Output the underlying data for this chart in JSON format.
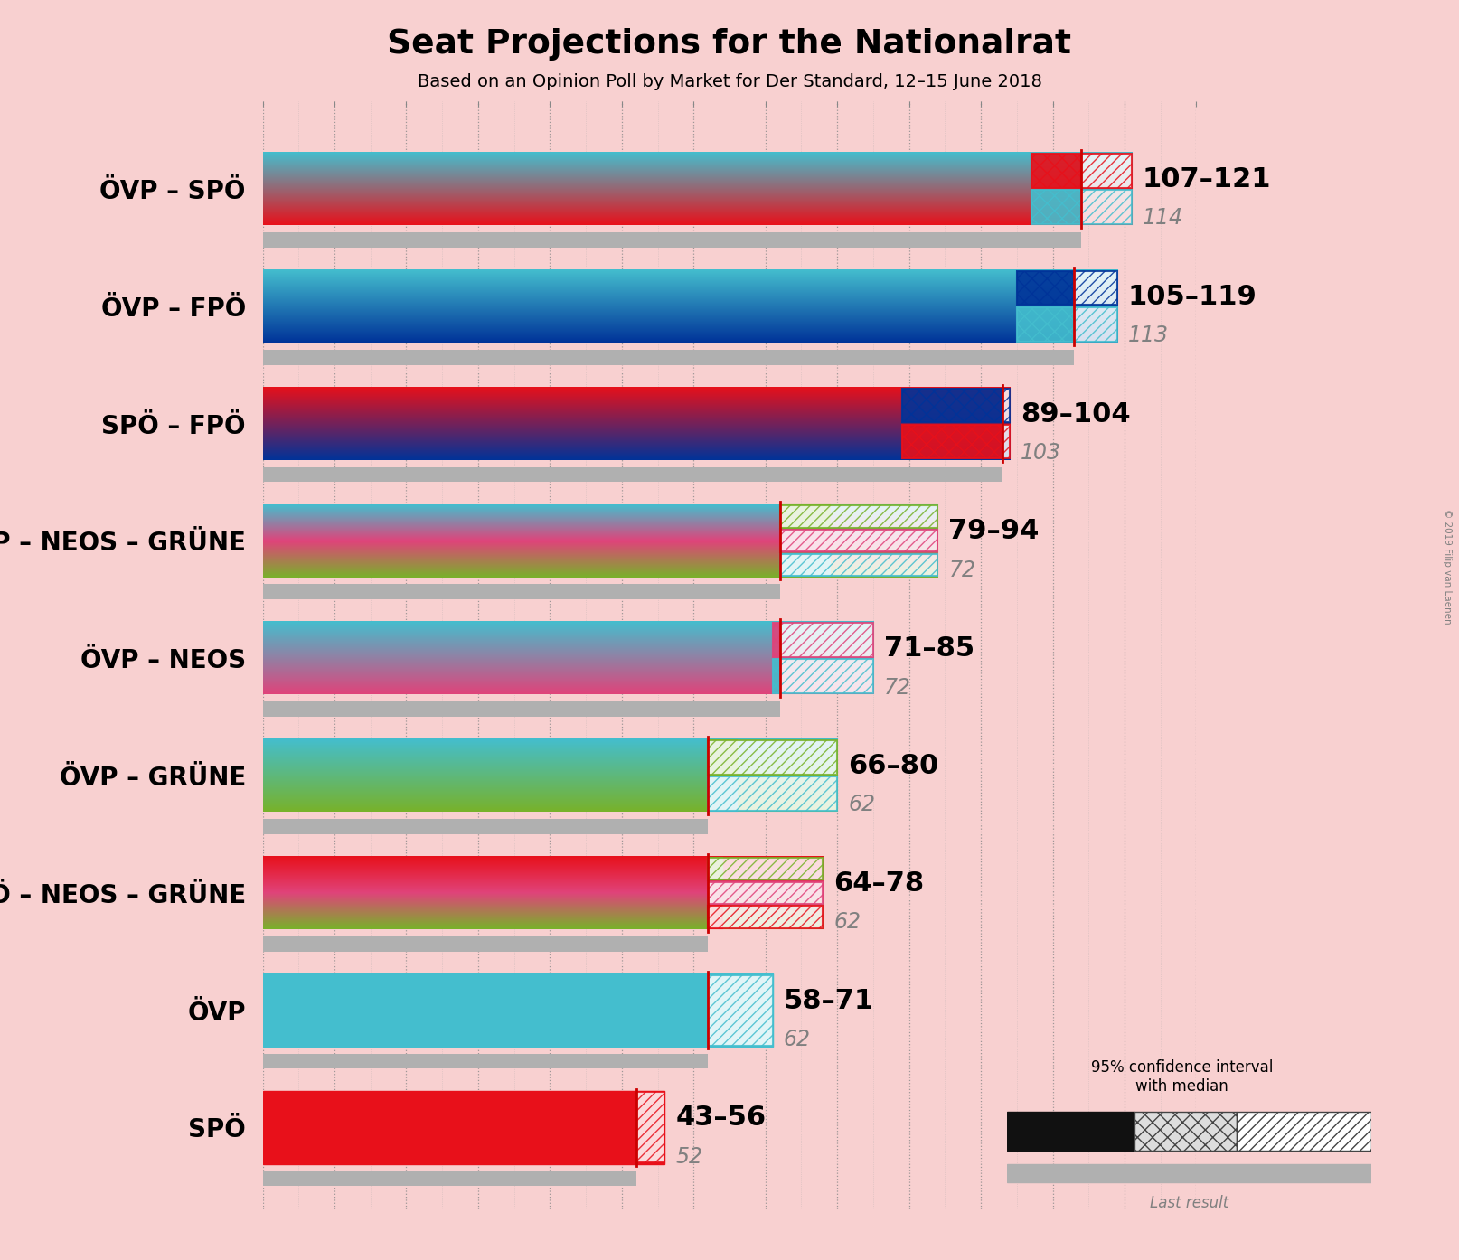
{
  "title": "Seat Projections for the Nationalrat",
  "subtitle": "Based on an Opinion Poll by Market for Der Standard, 12–15 June 2018",
  "copyright": "© 2019 Filip van Laenen",
  "background_color": "#f8d0d0",
  "coalitions": [
    {
      "label": "ÖVP – SPÖ",
      "colors": [
        "#44bece",
        "#e8101a"
      ],
      "ci_low": 107,
      "ci_high": 121,
      "median": 114,
      "last_result": 114
    },
    {
      "label": "ÖVP – FPÖ",
      "colors": [
        "#44bece",
        "#003399"
      ],
      "ci_low": 105,
      "ci_high": 119,
      "median": 113,
      "last_result": 113
    },
    {
      "label": "SPÖ – FPÖ",
      "colors": [
        "#e8101a",
        "#003399"
      ],
      "ci_low": 89,
      "ci_high": 104,
      "median": 103,
      "last_result": 103
    },
    {
      "label": "ÖVP – NEOS – GRÜNE",
      "colors": [
        "#44bece",
        "#e0437a",
        "#78b22a"
      ],
      "ci_low": 79,
      "ci_high": 94,
      "median": 72,
      "last_result": 72
    },
    {
      "label": "ÖVP – NEOS",
      "colors": [
        "#44bece",
        "#e0437a"
      ],
      "ci_low": 71,
      "ci_high": 85,
      "median": 72,
      "last_result": 72
    },
    {
      "label": "ÖVP – GRÜNE",
      "colors": [
        "#44bece",
        "#78b22a"
      ],
      "ci_low": 66,
      "ci_high": 80,
      "median": 62,
      "last_result": 62
    },
    {
      "label": "SPÖ – NEOS – GRÜNE",
      "colors": [
        "#e8101a",
        "#e0437a",
        "#78b22a"
      ],
      "ci_low": 64,
      "ci_high": 78,
      "median": 62,
      "last_result": 62
    },
    {
      "label": "ÖVP",
      "colors": [
        "#44bece"
      ],
      "ci_low": 58,
      "ci_high": 71,
      "median": 62,
      "last_result": 62
    },
    {
      "label": "SPÖ",
      "colors": [
        "#e8101a"
      ],
      "ci_low": 43,
      "ci_high": 56,
      "median": 52,
      "last_result": 52
    }
  ],
  "x_max": 130,
  "gray_color": "#b0b0b0",
  "median_line_color": "#cc0000",
  "label_fontsize": 20,
  "range_fontsize": 22,
  "median_fontsize": 17
}
